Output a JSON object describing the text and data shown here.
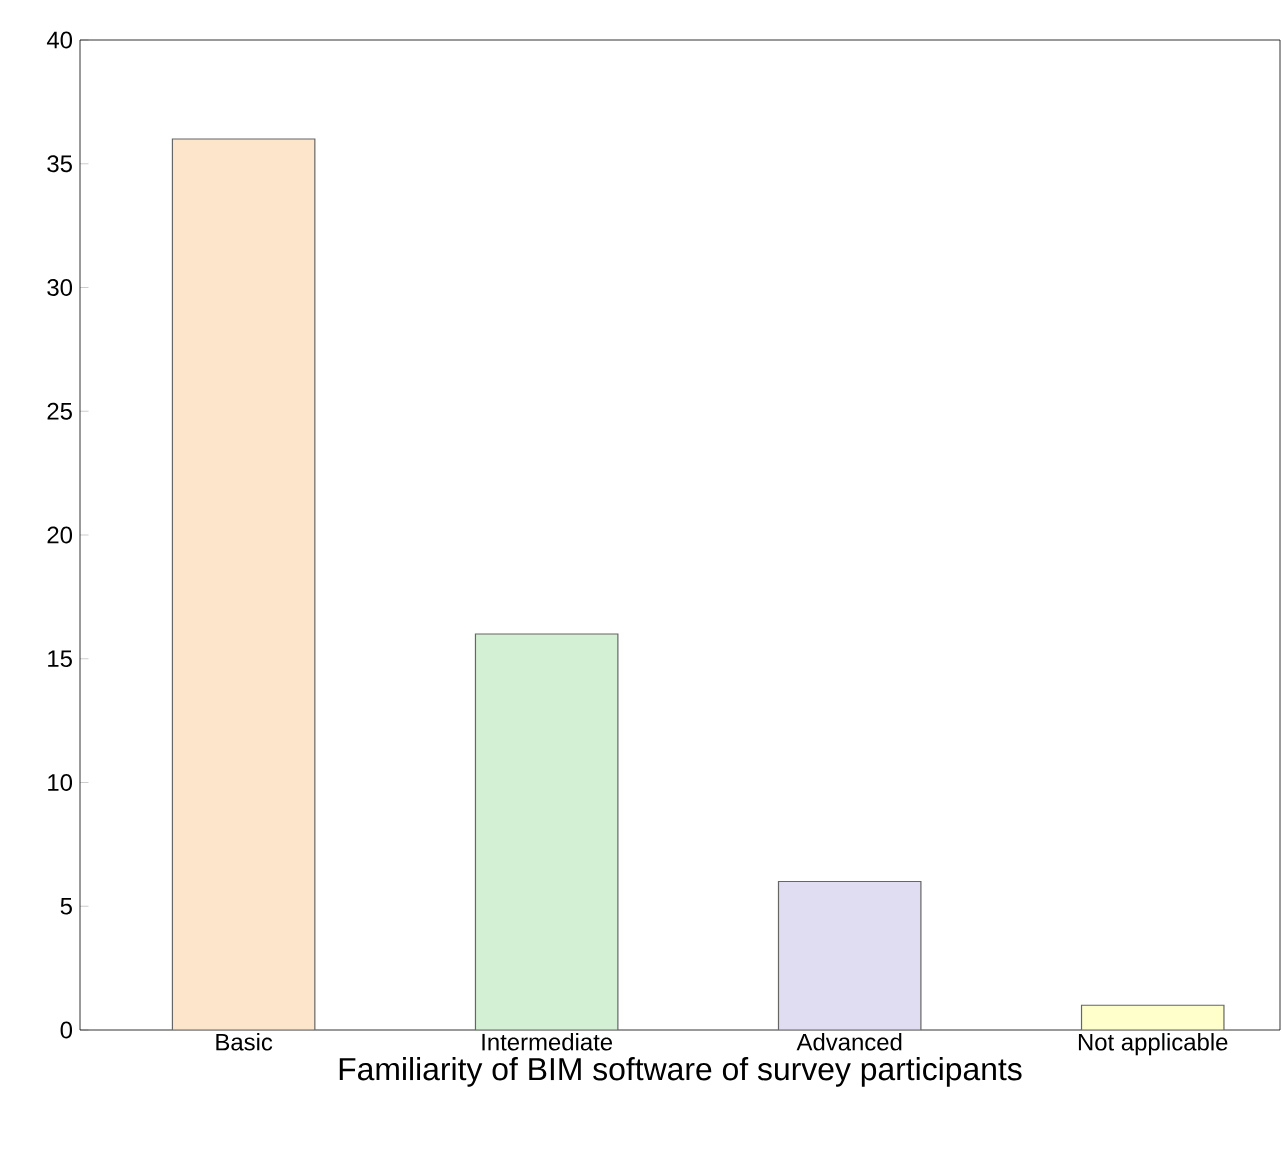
{
  "chart_data": {
    "type": "bar",
    "xlabel": "Familiarity of BIM software of survey participants",
    "categories": [
      "Basic",
      "Intermediate",
      "Advanced",
      "Not applicable"
    ],
    "values": [
      36,
      16,
      6,
      1
    ],
    "colors": [
      "#fde5cb",
      "#d4f0d4",
      "#e0dcf1",
      "#ffffcc"
    ],
    "ylim": [
      0,
      40
    ],
    "yticks": [
      0,
      5,
      10,
      15,
      20,
      25,
      30,
      35,
      40
    ],
    "grid": false
  }
}
